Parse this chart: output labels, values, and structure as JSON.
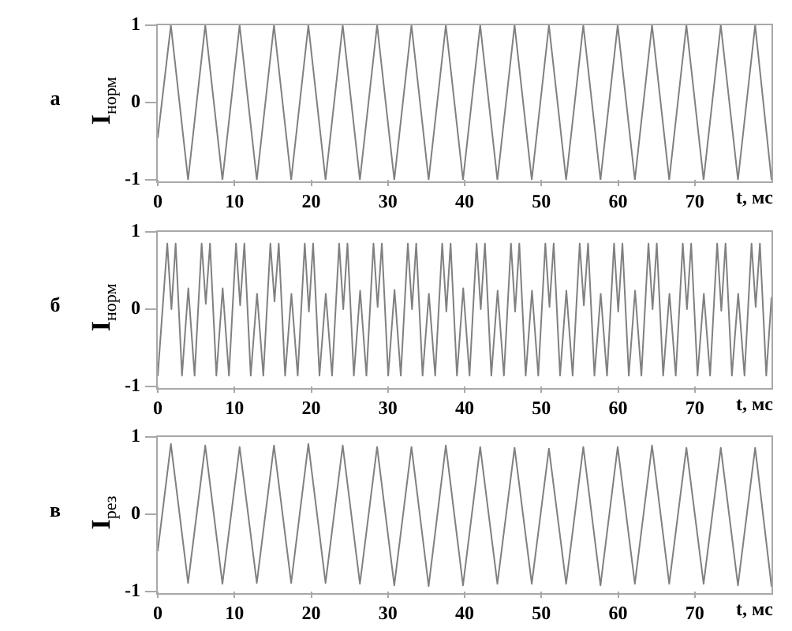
{
  "chart_data": [
    {
      "type": "line",
      "title": "а",
      "xlabel": "t, мс",
      "ylabel": "I$_{норм}$",
      "color": "#808080",
      "line_style": "solid",
      "x": [
        0,
        1.71,
        3.95,
        6.19,
        8.43,
        10.67,
        12.91,
        15.15,
        17.39,
        19.63,
        21.87,
        24.11,
        26.35,
        28.59,
        30.83,
        33.07,
        35.31,
        37.55,
        39.79,
        42.03,
        44.27,
        46.51,
        48.75,
        50.99,
        53.23,
        55.47,
        57.71,
        59.95,
        62.19,
        64.43,
        66.67,
        68.91,
        71.15,
        73.39,
        75.63,
        77.87,
        80
      ],
      "values": [
        -0.45,
        1,
        -1,
        1,
        -1,
        1,
        -1,
        1,
        -1,
        1,
        -1,
        1,
        -1,
        1,
        -1,
        1,
        -1,
        1,
        -1,
        1,
        -1,
        1,
        -1,
        1,
        -1,
        1,
        -1,
        1,
        -1,
        1,
        -1,
        1,
        -1,
        1,
        -1,
        1,
        -1
      ],
      "xlim": [
        0,
        80
      ],
      "xticks": [
        0,
        10,
        20,
        30,
        40,
        50,
        60,
        70
      ],
      "ylim": [
        -1,
        1
      ],
      "yticks": [
        -1,
        0,
        1
      ]
    },
    {
      "type": "line",
      "title": "б",
      "xlabel": "t, мс",
      "ylabel": "I$_{норм}$",
      "color": "#808080",
      "line_style": "solid",
      "x": [
        0,
        1.24,
        1.78,
        2.33,
        3.16,
        3.98,
        4.8,
        5.72,
        6.26,
        6.81,
        7.64,
        8.46,
        9.28,
        10.2,
        10.74,
        11.29,
        12.12,
        12.94,
        13.76,
        14.68,
        15.22,
        15.77,
        16.6,
        17.42,
        18.24,
        19.16,
        19.7,
        20.25,
        21.08,
        21.9,
        22.72,
        23.64,
        24.18,
        24.73,
        25.56,
        26.38,
        27.2,
        28.12,
        28.66,
        29.21,
        30.04,
        30.86,
        31.68,
        32.6,
        33.14,
        33.69,
        34.52,
        35.34,
        36.16,
        37.08,
        37.62,
        38.17,
        39,
        39.82,
        40.64,
        41.56,
        42.1,
        42.65,
        43.48,
        44.3,
        45.12,
        46.04,
        46.58,
        47.13,
        47.96,
        48.78,
        49.6,
        50.52,
        51.06,
        51.61,
        52.44,
        53.26,
        54.08,
        55,
        55.54,
        56.09,
        56.92,
        57.74,
        58.56,
        59.48,
        60.02,
        60.57,
        61.4,
        62.22,
        63.04,
        63.96,
        64.5,
        65.05,
        65.88,
        66.7,
        67.52,
        68.44,
        68.98,
        69.53,
        70.36,
        71.18,
        72,
        72.92,
        73.46,
        74.01,
        74.84,
        75.66,
        76.48,
        77.4,
        77.94,
        78.49,
        79.32,
        80
      ],
      "values": [
        -0.86,
        0.85,
        0,
        0.85,
        -0.86,
        0.27,
        -0.86,
        0.85,
        0.07,
        0.85,
        -0.86,
        0.27,
        -0.86,
        0.85,
        0.05,
        0.85,
        -0.86,
        0.2,
        -0.86,
        0.85,
        0.1,
        0.85,
        -0.86,
        0.2,
        -0.86,
        0.85,
        -0.03,
        0.85,
        -0.86,
        0.2,
        -0.86,
        0.85,
        0,
        0.85,
        -0.86,
        0.24,
        -0.86,
        0.85,
        0.03,
        0.85,
        -0.86,
        0.25,
        -0.86,
        0.85,
        0,
        0.85,
        -0.86,
        0.2,
        -0.86,
        0.85,
        -0.03,
        0.85,
        -0.86,
        0.27,
        -0.86,
        0.85,
        0,
        0.85,
        -0.86,
        0.24,
        -0.86,
        0.85,
        -0.03,
        0.85,
        -0.86,
        0.24,
        -0.86,
        0.85,
        0.03,
        0.85,
        -0.86,
        0.24,
        -0.86,
        0.85,
        0.05,
        0.85,
        -0.86,
        0.2,
        -0.86,
        0.85,
        -0.03,
        0.85,
        -0.86,
        0.24,
        -0.86,
        0.85,
        0,
        0.85,
        -0.86,
        0.2,
        -0.86,
        0.85,
        0,
        0.85,
        -0.86,
        0.2,
        -0.86,
        0.85,
        -0.02,
        0.85,
        -0.86,
        0.2,
        -0.86,
        0.85,
        0.03,
        0.85,
        -0.86,
        0.15
      ],
      "xlim": [
        0,
        80
      ],
      "xticks": [
        0,
        10,
        20,
        30,
        40,
        50,
        60,
        70
      ],
      "ylim": [
        -1,
        1
      ],
      "yticks": [
        -1,
        0,
        1
      ]
    },
    {
      "type": "line",
      "title": "в",
      "xlabel": "t, мс",
      "ylabel": "I$_{рез}$",
      "color": "#808080",
      "line_style": "solid",
      "x": [
        0,
        1.71,
        3.95,
        6.19,
        8.43,
        10.67,
        12.91,
        15.15,
        17.39,
        19.63,
        21.87,
        24.11,
        26.35,
        28.59,
        30.83,
        33.07,
        35.31,
        37.55,
        39.79,
        42.03,
        44.27,
        46.51,
        48.75,
        50.99,
        53.23,
        55.47,
        57.71,
        59.95,
        62.19,
        64.43,
        66.67,
        68.91,
        71.15,
        73.39,
        75.63,
        77.87,
        80
      ],
      "values": [
        -0.47,
        0.91,
        -0.89,
        0.89,
        -0.9,
        0.87,
        -0.89,
        0.89,
        -0.89,
        0.91,
        -0.89,
        0.89,
        -0.9,
        0.87,
        -0.92,
        0.87,
        -0.93,
        0.89,
        -0.92,
        0.87,
        -0.9,
        0.86,
        -0.9,
        0.85,
        -0.9,
        0.87,
        -0.92,
        0.87,
        -0.9,
        0.89,
        -0.9,
        0.86,
        -0.9,
        0.86,
        -0.92,
        0.86,
        -0.93
      ],
      "xlim": [
        0,
        80
      ],
      "xticks": [
        0,
        10,
        20,
        30,
        40,
        50,
        60,
        70
      ],
      "ylim": [
        -1,
        1
      ],
      "yticks": [
        -1,
        0,
        1
      ]
    }
  ]
}
